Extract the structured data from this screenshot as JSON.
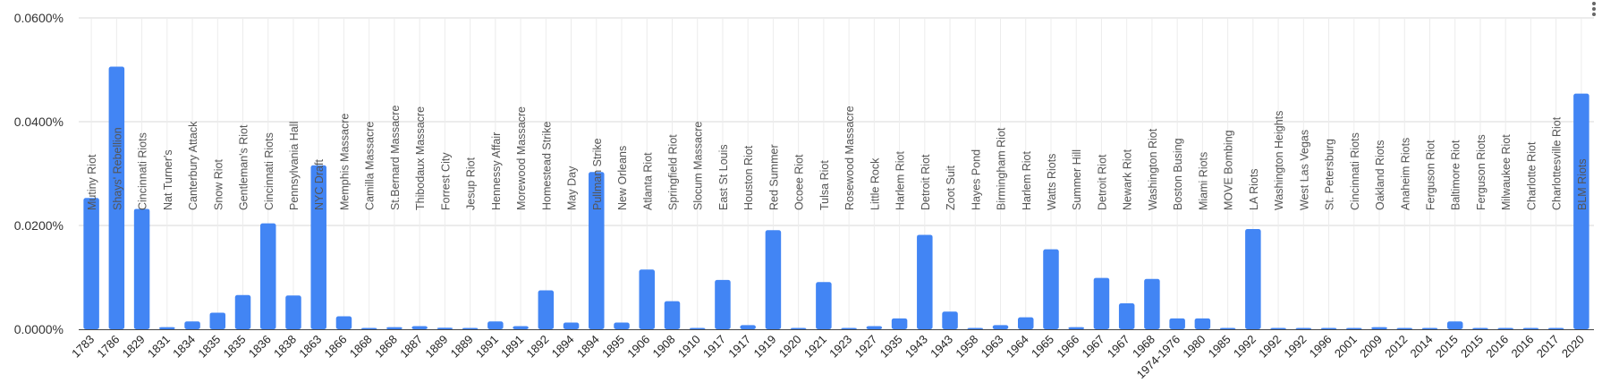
{
  "chart_data": {
    "type": "bar",
    "title": "",
    "xlabel": "",
    "ylabel": "",
    "ylim": [
      0,
      0.0006
    ],
    "y_ticks": [
      "0.0000%",
      "0.0200%",
      "0.0400%",
      "0.0600%"
    ],
    "grid": true,
    "legend": "none",
    "bar_color": "#4285f4",
    "categories": [
      "1783",
      "1786",
      "1829",
      "1831",
      "1834",
      "1835",
      "1835",
      "1836",
      "1838",
      "1863",
      "1866",
      "1868",
      "1868",
      "1887",
      "1889",
      "1889",
      "1891",
      "1891",
      "1892",
      "1894",
      "1894",
      "1895",
      "1906",
      "1908",
      "1910",
      "1917",
      "1917",
      "1919",
      "1920",
      "1921",
      "1923",
      "1927",
      "1935",
      "1943",
      "1943",
      "1958",
      "1963",
      "1964",
      "1965",
      "1966",
      "1967",
      "1967",
      "1968",
      "1974-1976",
      "1980",
      "1985",
      "1992",
      "1992",
      "1992",
      "1996",
      "2001",
      "2009",
      "2012",
      "2014",
      "2015",
      "2015",
      "2016",
      "2016",
      "2017",
      "2020"
    ],
    "labels": [
      "Mutiny Riot",
      "Shays' Rebellion",
      "Cincinnati Riots",
      "Nat Turner's",
      "Canterbury Attack",
      "Snow Riot",
      "Gentleman's Riot",
      "Cincinnati Riots",
      "Pennsylvania Hall",
      "NYC Draft",
      "Memphis Massacre",
      "Camilla Massacre",
      "St.Bernard Massacre",
      "Thibodaux Massacre",
      "Forrest City",
      "Jesup Riot",
      "Hennessy Affair",
      "Morewood Massacre",
      "Homestead Strike",
      "May Day",
      "Pullman Strike",
      "New Orleans",
      "Atlanta Riot",
      "Springfield Riot",
      "Slocum Massacre",
      "East St Louis",
      "Houston Riot",
      "Red Summer",
      "Ocoee Riot",
      "Tulsa Riot",
      "Rosewood Massacre",
      "Little Rock",
      "Harlem Riot",
      "Detroit Riot",
      "Zoot Suit",
      "Hayes Pond",
      "Birmingham Riot",
      "Harlem Riot",
      "Watts Riots",
      "Summer Hill",
      "Detroit Riot",
      "Newark Riot",
      "Washington Riot",
      "Boston Busing",
      "Miami Riots",
      "MOVE Bombing",
      "LA Riots",
      "Washington Heights",
      "West Las Vegas",
      "St. Petersburg",
      "Cincinnati Riots",
      "Oakland Riots",
      "Anaheim Riots",
      "Ferguson Riot",
      "Baltimore Riot",
      "Ferguson Riots",
      "Milwaukee Riot",
      "Charlotte Riot",
      "Charlottesville Riot",
      "BLM Riots"
    ],
    "values": [
      0.000253,
      0.000506,
      0.000232,
      4e-06,
      1.5e-05,
      3.2e-05,
      6.6e-05,
      0.000204,
      6.5e-05,
      0.000316,
      2.5e-05,
      2e-06,
      4e-06,
      6e-06,
      3e-06,
      1e-06,
      1.5e-05,
      6e-06,
      7.5e-05,
      1.3e-05,
      0.000303,
      1.3e-05,
      0.000115,
      5.4e-05,
      2e-06,
      9.5e-05,
      8e-06,
      0.000191,
      2e-06,
      9.1e-05,
      2e-06,
      6e-06,
      2.1e-05,
      0.000182,
      3.4e-05,
      1e-06,
      8e-06,
      2.3e-05,
      0.000154,
      4e-06,
      9.9e-05,
      5e-05,
      9.7e-05,
      2.1e-05,
      2.1e-05,
      1e-06,
      0.000193,
      2e-06,
      2e-06,
      1e-06,
      2e-06,
      4e-06,
      2e-06,
      2e-06,
      1.5e-05,
      2e-06,
      2e-06,
      2e-06,
      2e-06,
      0.000454
    ]
  }
}
